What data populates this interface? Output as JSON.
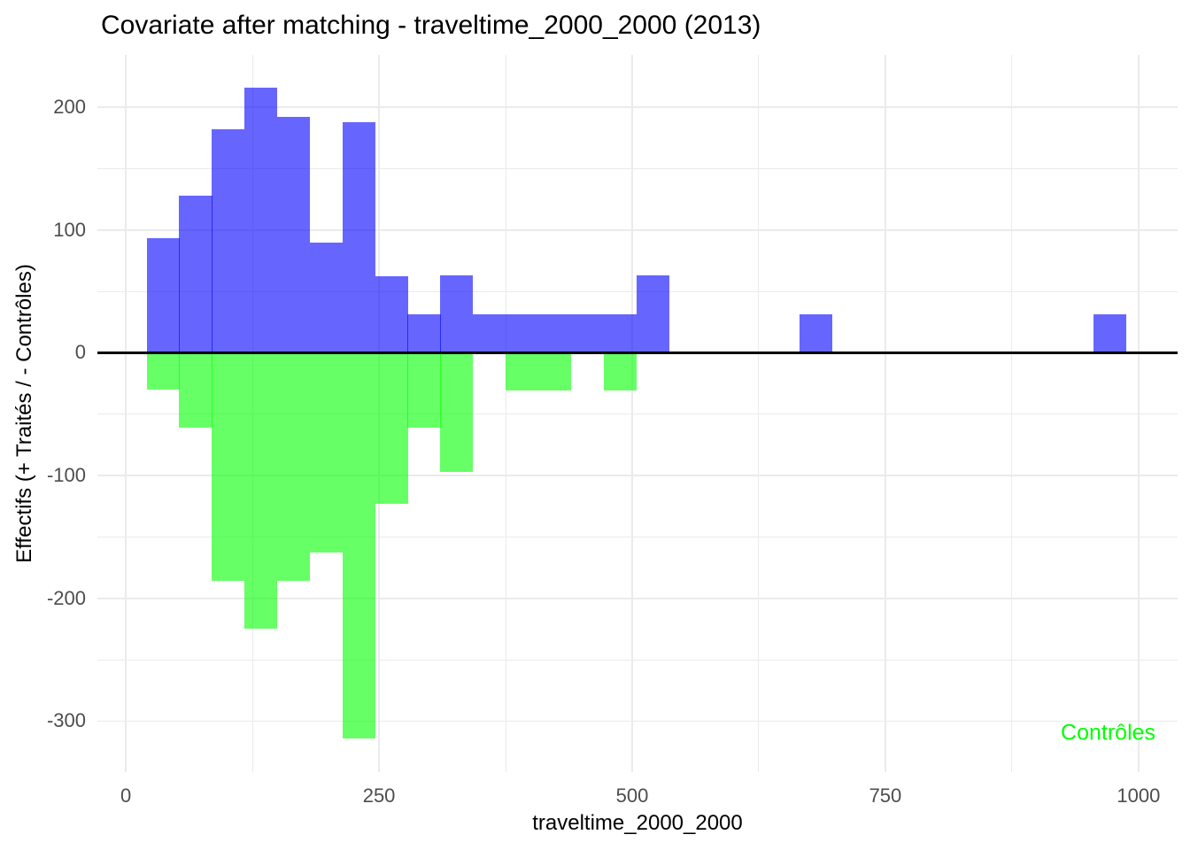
{
  "chart_data": {
    "type": "bar",
    "subtype": "mirrored-histogram",
    "title": "Covariate after matching - traveltime_2000_2000 (2013)",
    "xlabel": "traveltime_2000_2000",
    "ylabel": "Effectifs (+ Traités / - Contrôles)",
    "bin_start": 20.5,
    "bin_width": 32.23,
    "xlim": [
      -28.1,
      1038.6
    ],
    "ylim": [
      -341.5,
      242.6
    ],
    "x_ticks": [
      0,
      250,
      500,
      750,
      1000
    ],
    "x_minor_ticks": [
      125,
      375,
      625,
      875
    ],
    "y_ticks": [
      200,
      100,
      0,
      -100,
      -200,
      -300
    ],
    "y_minor_ticks": [
      150,
      50,
      -50,
      -150,
      -250
    ],
    "grid_on": true,
    "legend_position": "none",
    "series": [
      {
        "name": "Traités",
        "color": "rgba(0,0,255,0.6)",
        "values": [
          93,
          128,
          182,
          216,
          192,
          90,
          188,
          62,
          31,
          63,
          31,
          31,
          31,
          31,
          31,
          63,
          0,
          0,
          0,
          0,
          31,
          0,
          0,
          0,
          0,
          0,
          0,
          0,
          0,
          31
        ]
      },
      {
        "name": "Contrôles",
        "color": "rgba(0,255,0,0.6)",
        "values": [
          -30,
          -61,
          -186,
          -225,
          -186,
          -163,
          -314,
          -123,
          -61,
          -97,
          0,
          -31,
          -31,
          0,
          -31,
          0,
          0,
          0,
          0,
          0,
          0,
          0,
          0,
          0,
          0,
          0,
          0,
          0,
          0,
          0
        ]
      }
    ],
    "annotations": [
      {
        "text": "Contrôles",
        "x": 970,
        "y": -310,
        "color": "#00FF00"
      }
    ],
    "colors": {
      "zero_line": "#000000",
      "grid": "#EBEBEB",
      "axis_text": "#4D4D4D",
      "title_text": "#000000"
    }
  }
}
